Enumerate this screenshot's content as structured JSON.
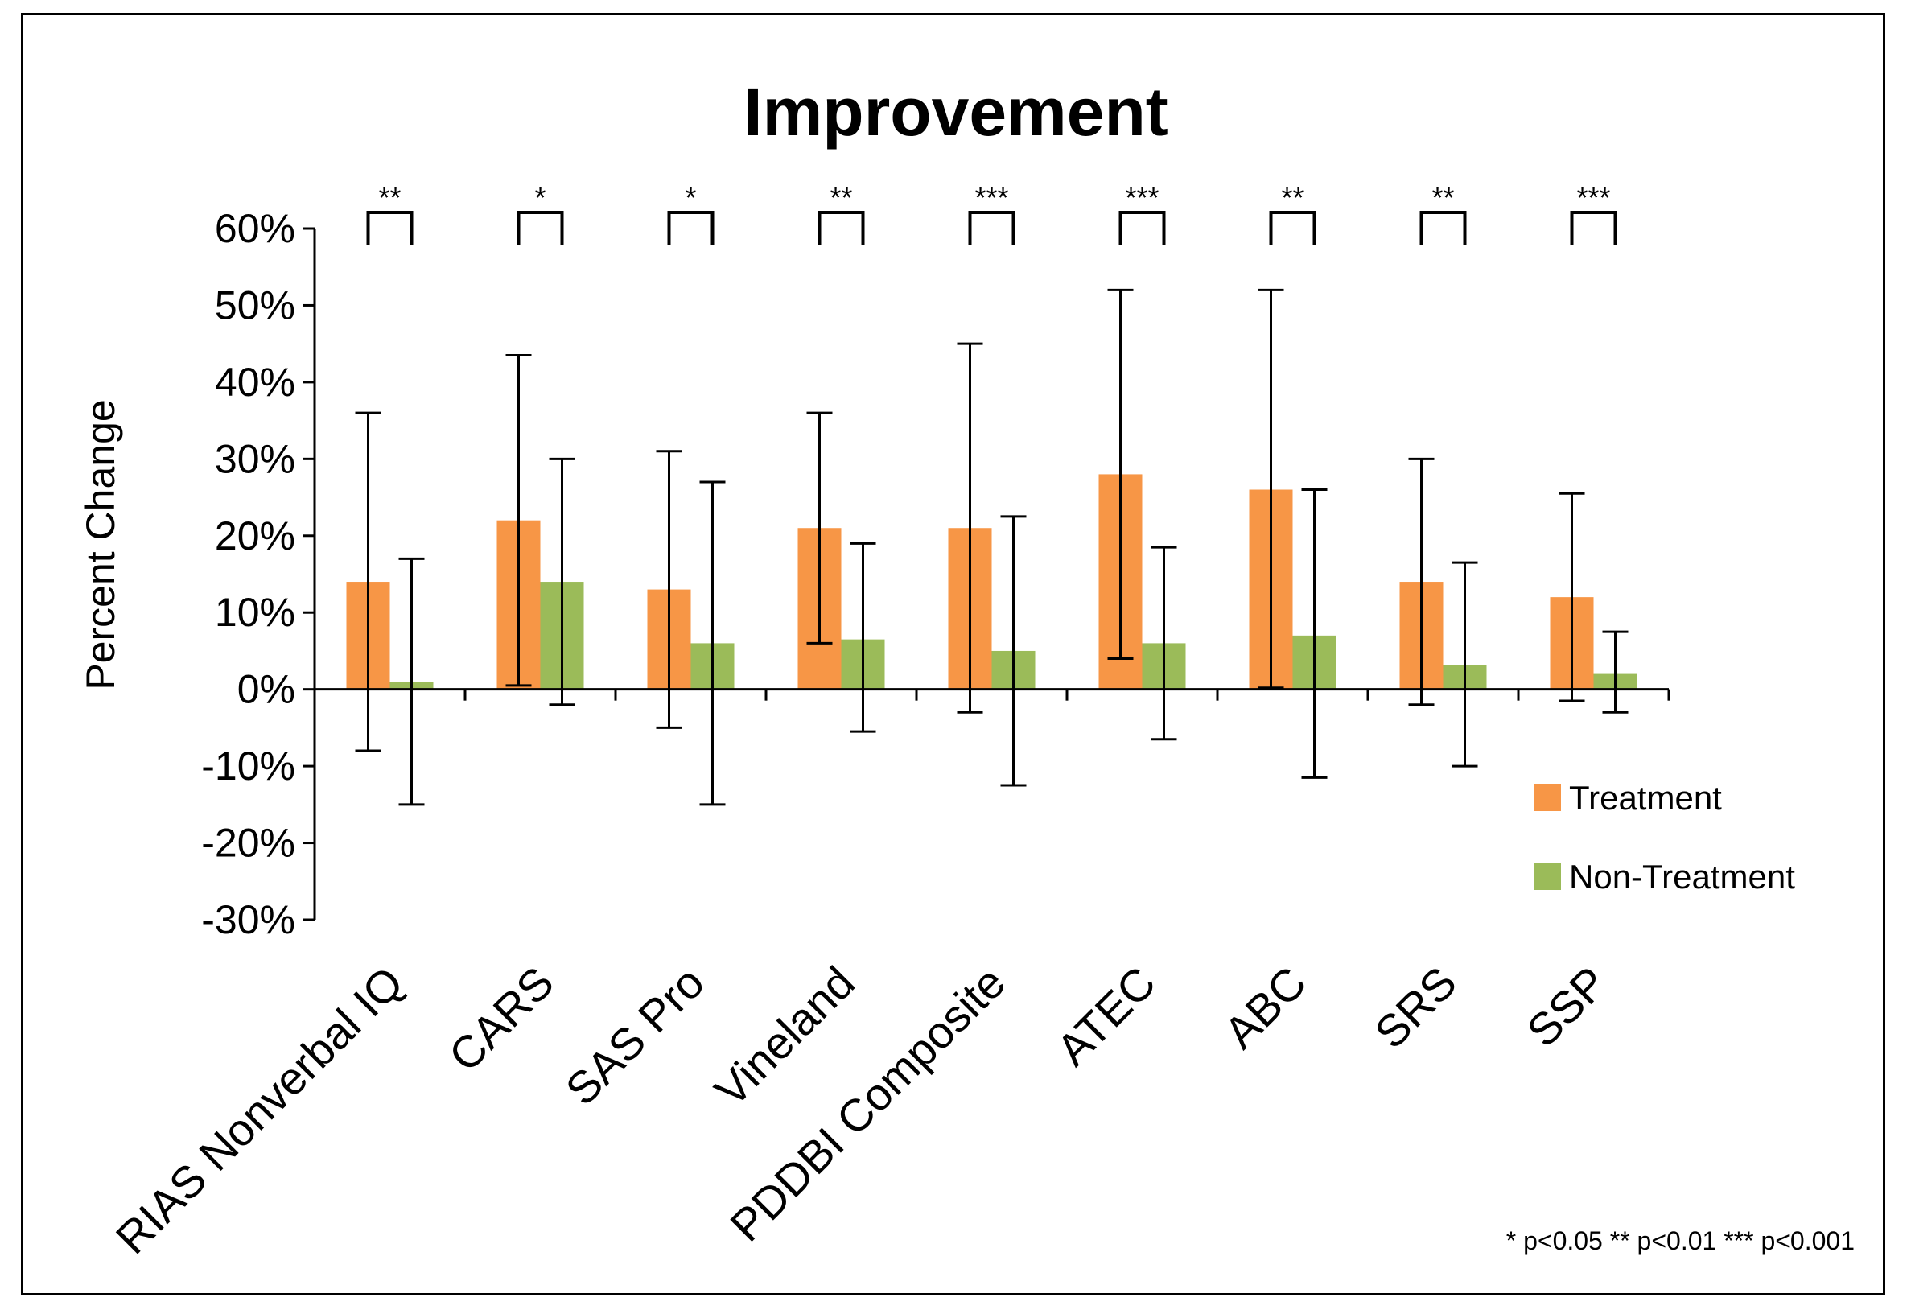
{
  "chart_data": {
    "type": "bar",
    "title": "Improvement",
    "xlabel": "",
    "ylabel": "Percent Change",
    "ylim": [
      -30,
      60
    ],
    "yticks": [
      60,
      50,
      40,
      30,
      20,
      10,
      0,
      -10,
      -20,
      -30
    ],
    "ytick_labels": [
      "60%",
      "50%",
      "40%",
      "30%",
      "20%",
      "10%",
      "0%",
      "-10%",
      "-20%",
      "-30%"
    ],
    "categories": [
      "RIAS Nonverbal IQ",
      "CARS",
      "SAS Pro",
      "Vineland",
      "PDDBI Composite",
      "ATEC",
      "ABC",
      "SRS",
      "SSP"
    ],
    "series": [
      {
        "name": "Treatment",
        "color": "#F79646",
        "values": [
          14,
          22,
          13,
          21,
          21,
          28,
          26,
          14,
          12
        ],
        "error_low": [
          -8,
          0.5,
          -5,
          6,
          -3,
          4,
          0.2,
          -2,
          -1.5
        ],
        "error_high": [
          36,
          43.5,
          31,
          36,
          45,
          52,
          52,
          30,
          25.5
        ]
      },
      {
        "name": "Non-Treatment",
        "color": "#9BBB59",
        "values": [
          1,
          14,
          6,
          6.5,
          5,
          6,
          7,
          3.2,
          2
        ],
        "error_low": [
          -15,
          -2,
          -15,
          -5.5,
          -12.5,
          -6.5,
          -11.5,
          -10,
          -3
        ],
        "error_high": [
          17,
          30,
          27,
          19,
          22.5,
          18.5,
          26,
          16.5,
          7.5
        ]
      }
    ],
    "significance": [
      "**",
      "*",
      "*",
      "**",
      "***",
      "***",
      "**",
      "**",
      "***"
    ],
    "legend_position": "right",
    "footnote": "* p<0.05 ** p<0.01 *** p<0.001",
    "grid": false
  }
}
